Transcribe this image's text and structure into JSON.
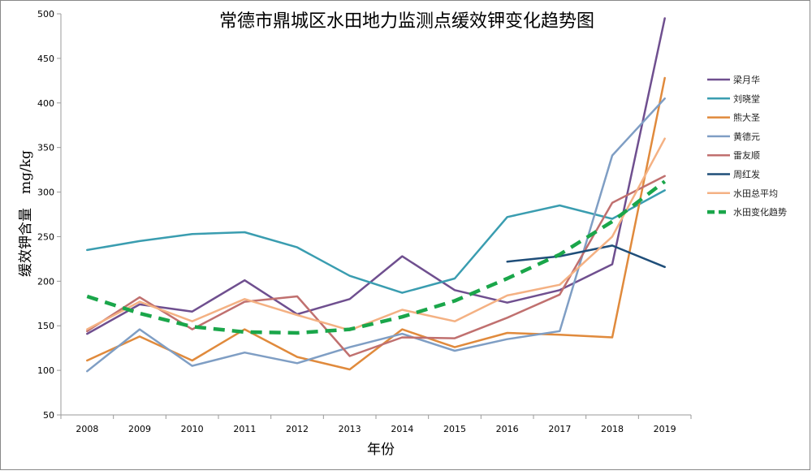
{
  "chart_data": {
    "type": "line",
    "title": "常德市鼎城区水田地力监测点缓效钾变化趋势图",
    "xlabel": "年份",
    "ylabel": "缓效钾含量　mg/kg",
    "categories": [
      "2008",
      "2009",
      "2010",
      "2011",
      "2012",
      "2013",
      "2014",
      "2015",
      "2016",
      "2017",
      "2018",
      "2019"
    ],
    "ylim": [
      50,
      500
    ],
    "yticks": [
      50,
      100,
      150,
      200,
      250,
      300,
      350,
      400,
      450,
      500
    ],
    "grid": false,
    "legend_position": "right",
    "series": [
      {
        "name": "梁月华",
        "color": "#6f4f8f",
        "dashed": false,
        "values": [
          141,
          174,
          166,
          201,
          163,
          180,
          228,
          190,
          176,
          190,
          219,
          495
        ]
      },
      {
        "name": "刘晓堂",
        "color": "#3a9db0",
        "dashed": false,
        "values": [
          235,
          245,
          253,
          255,
          238,
          206,
          187,
          203,
          272,
          285,
          270,
          302
        ]
      },
      {
        "name": "熊大圣",
        "color": "#e08a3c",
        "dashed": false,
        "values": [
          111,
          138,
          111,
          146,
          115,
          101,
          146,
          126,
          142,
          140,
          137,
          428
        ]
      },
      {
        "name": "黄德元",
        "color": "#7f9ec4",
        "dashed": false,
        "values": [
          99,
          146,
          105,
          120,
          108,
          126,
          141,
          122,
          135,
          144,
          341,
          405
        ]
      },
      {
        "name": "雷友顺",
        "color": "#c0706f",
        "dashed": false,
        "values": [
          144,
          182,
          146,
          177,
          183,
          116,
          137,
          136,
          159,
          185,
          288,
          318
        ]
      },
      {
        "name": "周红发",
        "color": "#1f4e79",
        "dashed": false,
        "values": [
          null,
          null,
          null,
          null,
          null,
          null,
          null,
          null,
          222,
          228,
          240,
          216
        ]
      },
      {
        "name": "水田总平均",
        "color": "#f4b183",
        "dashed": false,
        "values": [
          146,
          177,
          155,
          180,
          162,
          145,
          168,
          155,
          184,
          196,
          250,
          360
        ]
      },
      {
        "name": "水田变化趋势",
        "color": "#1aa64a",
        "dashed": true,
        "values": [
          183,
          164,
          149,
          143,
          142,
          146,
          160,
          178,
          203,
          230,
          267,
          312
        ]
      }
    ]
  }
}
